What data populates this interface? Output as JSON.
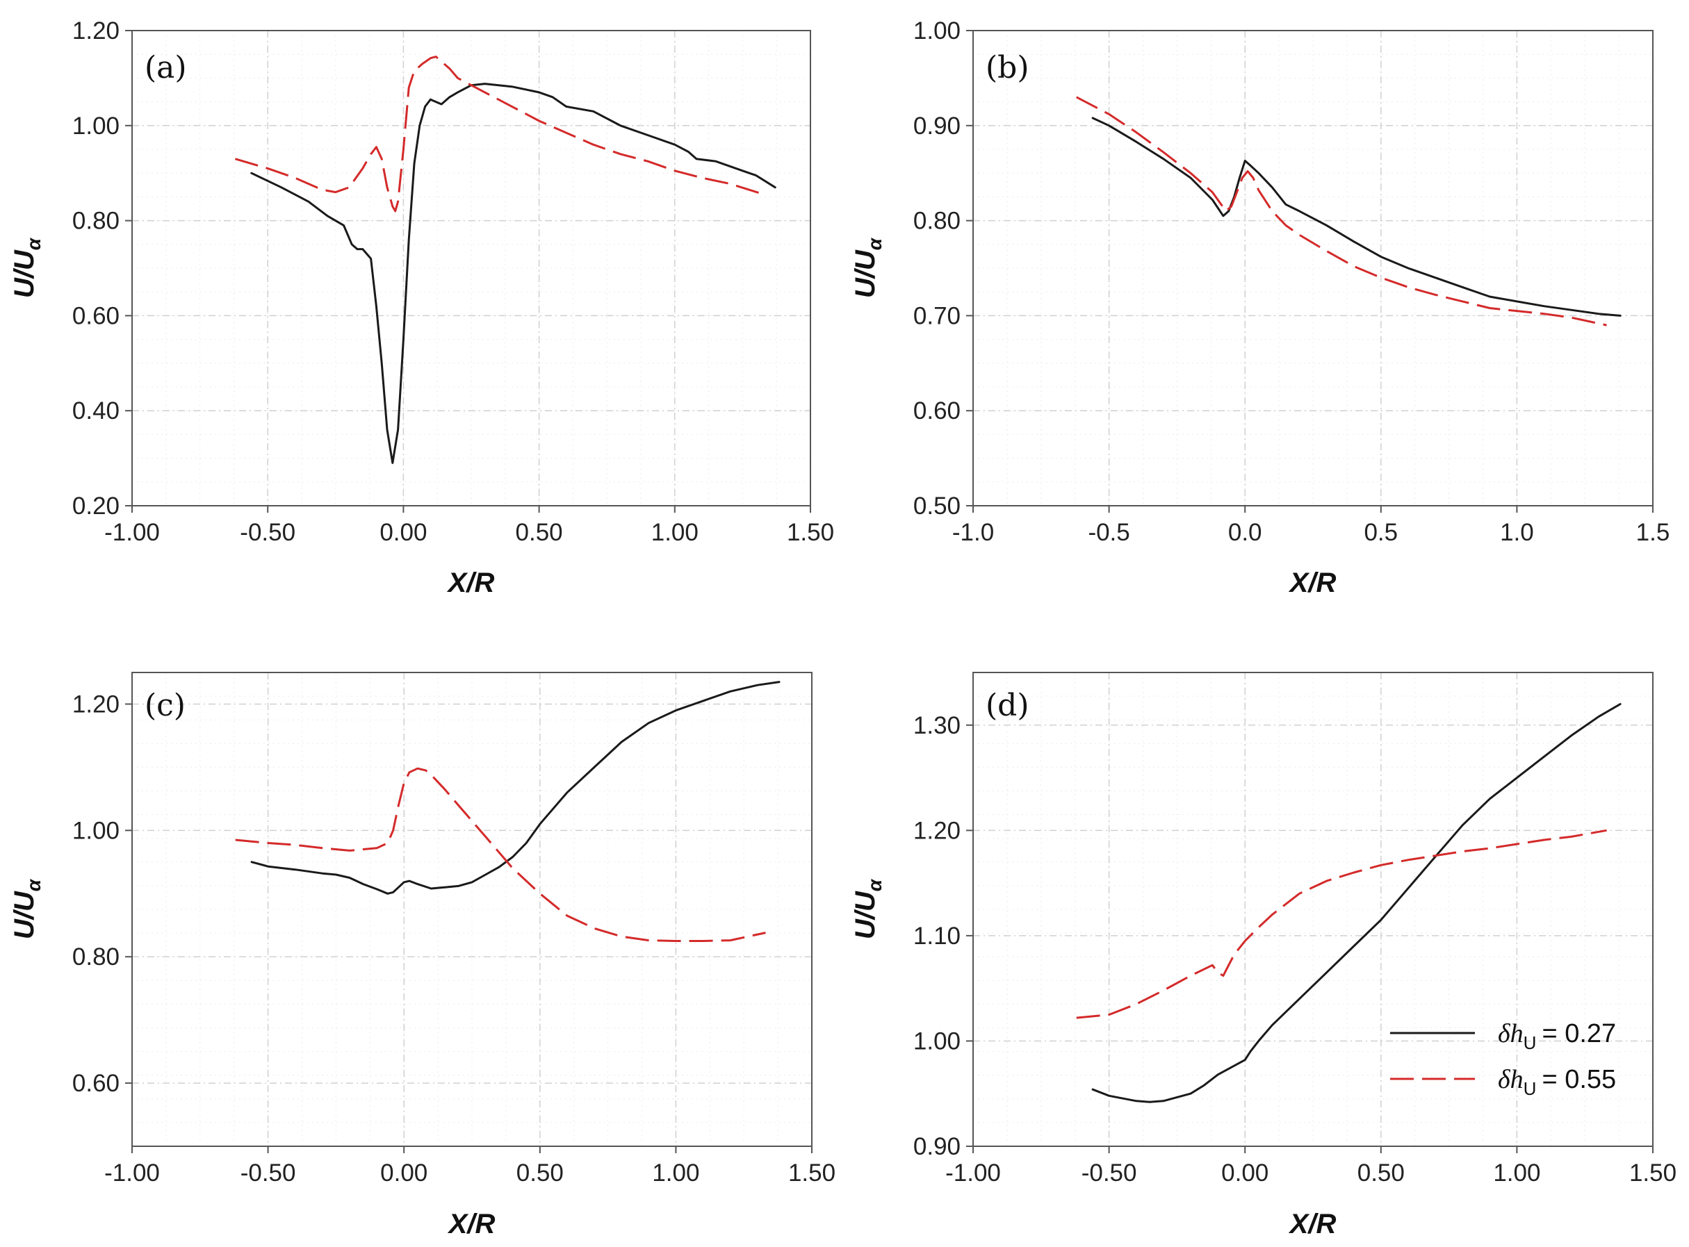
{
  "colors": {
    "series_solid": "#1a1a1a",
    "series_dashed": "#d42a2a",
    "grid": "#d0d0d0",
    "frame": "#555555"
  },
  "chart_data": [
    {
      "type": "line",
      "panel": "(a)",
      "xlabel": "X/R",
      "ylabel": "U/Uα",
      "xlim": [
        -1.0,
        1.5
      ],
      "ylim": [
        0.2,
        1.2
      ],
      "xticks": [
        -1.0,
        -0.5,
        0.0,
        0.5,
        1.0,
        1.5
      ],
      "yticks": [
        0.2,
        0.4,
        0.6,
        0.8,
        1.0,
        1.2
      ],
      "xtick_labels": [
        "-1.00",
        "-0.50",
        "0.00",
        "0.50",
        "1.00",
        "1.50"
      ],
      "ytick_labels": [
        "0.20",
        "0.40",
        "0.60",
        "0.80",
        "1.00",
        "1.20"
      ],
      "series": [
        {
          "name": "δhU = 0.27",
          "style": "solid",
          "x": [
            -0.56,
            -0.45,
            -0.35,
            -0.28,
            -0.22,
            -0.19,
            -0.17,
            -0.15,
            -0.12,
            -0.1,
            -0.08,
            -0.06,
            -0.04,
            -0.02,
            0.0,
            0.02,
            0.04,
            0.06,
            0.08,
            0.1,
            0.12,
            0.14,
            0.17,
            0.2,
            0.25,
            0.3,
            0.4,
            0.5,
            0.55,
            0.6,
            0.7,
            0.8,
            0.9,
            1.0,
            1.05,
            1.08,
            1.15,
            1.2,
            1.25,
            1.3,
            1.37
          ],
          "y": [
            0.9,
            0.87,
            0.84,
            0.81,
            0.79,
            0.75,
            0.74,
            0.74,
            0.72,
            0.62,
            0.5,
            0.36,
            0.29,
            0.36,
            0.55,
            0.76,
            0.92,
            1.0,
            1.04,
            1.055,
            1.05,
            1.045,
            1.06,
            1.07,
            1.085,
            1.088,
            1.082,
            1.07,
            1.06,
            1.04,
            1.03,
            1.0,
            0.98,
            0.96,
            0.945,
            0.93,
            0.925,
            0.915,
            0.905,
            0.895,
            0.87
          ]
        },
        {
          "name": "δhU = 0.55",
          "style": "dashed",
          "x": [
            -0.62,
            -0.5,
            -0.4,
            -0.3,
            -0.25,
            -0.2,
            -0.15,
            -0.12,
            -0.1,
            -0.08,
            -0.06,
            -0.04,
            -0.03,
            -0.02,
            0.0,
            0.02,
            0.04,
            0.07,
            0.1,
            0.12,
            0.14,
            0.17,
            0.2,
            0.3,
            0.4,
            0.5,
            0.6,
            0.7,
            0.8,
            0.9,
            1.0,
            1.1,
            1.2,
            1.33
          ],
          "y": [
            0.93,
            0.91,
            0.89,
            0.865,
            0.86,
            0.87,
            0.91,
            0.94,
            0.955,
            0.93,
            0.87,
            0.83,
            0.82,
            0.84,
            0.95,
            1.08,
            1.115,
            1.13,
            1.142,
            1.145,
            1.135,
            1.12,
            1.1,
            1.07,
            1.04,
            1.01,
            0.985,
            0.96,
            0.94,
            0.925,
            0.905,
            0.89,
            0.878,
            0.855
          ]
        }
      ]
    },
    {
      "type": "line",
      "panel": "(b)",
      "xlabel": "X/R",
      "ylabel": "U/Uα",
      "xlim": [
        -1.0,
        1.5
      ],
      "ylim": [
        0.5,
        1.0
      ],
      "xticks": [
        -1.0,
        -0.5,
        0.0,
        0.5,
        1.0,
        1.5
      ],
      "yticks": [
        0.5,
        0.6,
        0.7,
        0.8,
        0.9,
        1.0
      ],
      "xtick_labels": [
        "-1.0",
        "-0.5",
        "0.0",
        "0.5",
        "1.0",
        "1.5"
      ],
      "ytick_labels": [
        "0.50",
        "0.60",
        "0.70",
        "0.80",
        "0.90",
        "1.00"
      ],
      "series": [
        {
          "name": "δhU = 0.27",
          "style": "solid",
          "x": [
            -0.56,
            -0.5,
            -0.4,
            -0.3,
            -0.2,
            -0.12,
            -0.08,
            -0.06,
            -0.04,
            -0.02,
            0.0,
            0.02,
            0.05,
            0.1,
            0.15,
            0.2,
            0.3,
            0.4,
            0.5,
            0.6,
            0.7,
            0.8,
            0.9,
            1.0,
            1.1,
            1.2,
            1.3,
            1.38
          ],
          "y": [
            0.908,
            0.9,
            0.883,
            0.865,
            0.845,
            0.822,
            0.805,
            0.81,
            0.825,
            0.845,
            0.863,
            0.858,
            0.85,
            0.835,
            0.817,
            0.81,
            0.795,
            0.778,
            0.762,
            0.75,
            0.74,
            0.73,
            0.72,
            0.715,
            0.71,
            0.706,
            0.702,
            0.7
          ]
        },
        {
          "name": "δhU = 0.55",
          "style": "dashed",
          "x": [
            -0.62,
            -0.5,
            -0.4,
            -0.3,
            -0.2,
            -0.12,
            -0.07,
            -0.05,
            -0.03,
            -0.01,
            0.01,
            0.03,
            0.05,
            0.1,
            0.15,
            0.2,
            0.3,
            0.4,
            0.5,
            0.6,
            0.7,
            0.8,
            0.9,
            1.0,
            1.1,
            1.2,
            1.33
          ],
          "y": [
            0.93,
            0.912,
            0.893,
            0.872,
            0.85,
            0.83,
            0.81,
            0.815,
            0.83,
            0.845,
            0.852,
            0.845,
            0.832,
            0.81,
            0.795,
            0.785,
            0.768,
            0.752,
            0.74,
            0.73,
            0.722,
            0.715,
            0.708,
            0.705,
            0.702,
            0.698,
            0.69
          ]
        }
      ]
    },
    {
      "type": "line",
      "panel": "(c)",
      "xlabel": "X/R",
      "ylabel": "U/Uα",
      "xlim": [
        -1.0,
        1.5
      ],
      "ylim": [
        0.5,
        1.25
      ],
      "xticks": [
        -1.0,
        -0.5,
        0.0,
        0.5,
        1.0,
        1.5
      ],
      "yticks": [
        0.6,
        0.8,
        1.0,
        1.2
      ],
      "xtick_labels": [
        "-1.00",
        "-0.50",
        "0.00",
        "0.50",
        "1.00",
        "1.50"
      ],
      "ytick_labels": [
        "0.60",
        "0.80",
        "1.00",
        "1.20"
      ],
      "series": [
        {
          "name": "δhU = 0.27",
          "style": "solid",
          "x": [
            -0.56,
            -0.5,
            -0.4,
            -0.3,
            -0.25,
            -0.2,
            -0.15,
            -0.1,
            -0.06,
            -0.04,
            -0.02,
            0.0,
            0.02,
            0.05,
            0.1,
            0.15,
            0.2,
            0.25,
            0.3,
            0.35,
            0.4,
            0.45,
            0.5,
            0.6,
            0.7,
            0.8,
            0.9,
            1.0,
            1.1,
            1.2,
            1.3,
            1.38
          ],
          "y": [
            0.95,
            0.943,
            0.938,
            0.932,
            0.93,
            0.925,
            0.915,
            0.907,
            0.9,
            0.902,
            0.91,
            0.918,
            0.92,
            0.915,
            0.908,
            0.91,
            0.912,
            0.918,
            0.93,
            0.942,
            0.958,
            0.98,
            1.01,
            1.06,
            1.1,
            1.14,
            1.17,
            1.19,
            1.205,
            1.22,
            1.23,
            1.235
          ]
        },
        {
          "name": "δhU = 0.55",
          "style": "dashed",
          "x": [
            -0.62,
            -0.5,
            -0.4,
            -0.3,
            -0.2,
            -0.1,
            -0.06,
            -0.04,
            -0.02,
            0.0,
            0.02,
            0.05,
            0.08,
            0.1,
            0.15,
            0.2,
            0.3,
            0.4,
            0.5,
            0.6,
            0.7,
            0.8,
            0.9,
            1.0,
            1.1,
            1.2,
            1.33
          ],
          "y": [
            0.985,
            0.98,
            0.977,
            0.972,
            0.968,
            0.972,
            0.98,
            1.0,
            1.04,
            1.075,
            1.092,
            1.098,
            1.095,
            1.088,
            1.065,
            1.04,
            0.99,
            0.94,
            0.9,
            0.865,
            0.845,
            0.832,
            0.826,
            0.825,
            0.825,
            0.826,
            0.838
          ]
        }
      ]
    },
    {
      "type": "line",
      "panel": "(d)",
      "xlabel": "X/R",
      "ylabel": "U/Uα",
      "xlim": [
        -1.0,
        1.5
      ],
      "ylim": [
        0.9,
        1.35
      ],
      "xticks": [
        -1.0,
        -0.5,
        0.0,
        0.5,
        1.0,
        1.5
      ],
      "yticks": [
        0.9,
        1.0,
        1.1,
        1.2,
        1.3
      ],
      "xtick_labels": [
        "-1.00",
        "-0.50",
        "0.00",
        "0.50",
        "1.00",
        "1.50"
      ],
      "ytick_labels": [
        "0.90",
        "1.00",
        "1.10",
        "1.20",
        "1.30"
      ],
      "legend": [
        {
          "symbol": "δh",
          "subscript": "U",
          "value": "= 0.27",
          "style": "solid"
        },
        {
          "symbol": "δh",
          "subscript": "U",
          "value": "= 0.55",
          "style": "dashed"
        }
      ],
      "series": [
        {
          "name": "δhU = 0.27",
          "style": "solid",
          "x": [
            -0.56,
            -0.5,
            -0.4,
            -0.35,
            -0.3,
            -0.2,
            -0.15,
            -0.1,
            -0.05,
            0.0,
            0.02,
            0.05,
            0.1,
            0.2,
            0.3,
            0.4,
            0.5,
            0.6,
            0.7,
            0.8,
            0.9,
            1.0,
            1.1,
            1.2,
            1.3,
            1.38
          ],
          "y": [
            0.954,
            0.948,
            0.943,
            0.942,
            0.943,
            0.95,
            0.958,
            0.968,
            0.975,
            0.982,
            0.99,
            1.0,
            1.015,
            1.04,
            1.065,
            1.09,
            1.115,
            1.145,
            1.175,
            1.205,
            1.23,
            1.25,
            1.27,
            1.29,
            1.308,
            1.32
          ]
        },
        {
          "name": "δhU = 0.55",
          "style": "dashed",
          "x": [
            -0.62,
            -0.5,
            -0.4,
            -0.3,
            -0.2,
            -0.12,
            -0.1,
            -0.08,
            -0.06,
            -0.04,
            0.0,
            0.05,
            0.1,
            0.2,
            0.3,
            0.4,
            0.5,
            0.6,
            0.7,
            0.8,
            0.9,
            1.0,
            1.1,
            1.2,
            1.33
          ],
          "y": [
            1.022,
            1.025,
            1.035,
            1.048,
            1.062,
            1.072,
            1.065,
            1.062,
            1.072,
            1.082,
            1.095,
            1.108,
            1.12,
            1.14,
            1.152,
            1.16,
            1.167,
            1.172,
            1.176,
            1.18,
            1.183,
            1.187,
            1.191,
            1.194,
            1.2
          ]
        }
      ]
    }
  ]
}
